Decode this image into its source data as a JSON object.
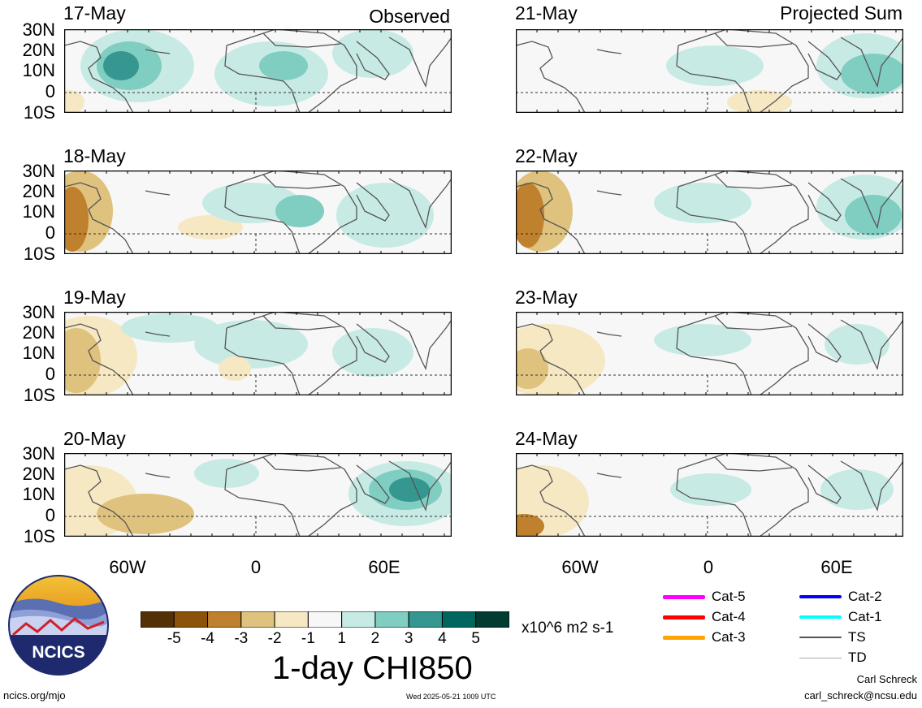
{
  "columns": {
    "left_title": "Observed",
    "right_title": "Projected Sum"
  },
  "observed_dates": [
    "17-May",
    "18-May",
    "19-May",
    "20-May"
  ],
  "projected_dates": [
    "21-May",
    "22-May",
    "23-May",
    "24-May"
  ],
  "lat_labels": [
    "30N",
    "20N",
    "10N",
    "0",
    "10S"
  ],
  "lon_labels": [
    "60W",
    "0",
    "60E"
  ],
  "colorbar": {
    "ticks": [
      "-5",
      "-4",
      "-3",
      "-2",
      "-1",
      "1",
      "2",
      "3",
      "4",
      "5"
    ],
    "colors": [
      "#543005",
      "#8c510a",
      "#bf812d",
      "#dfc27d",
      "#f6e8c3",
      "#f7f7f7",
      "#c7eae5",
      "#80cdc1",
      "#35978f",
      "#01665e",
      "#003c30"
    ],
    "units": "x10^6 m2 s-1",
    "title": "1-day CHI850"
  },
  "storm_legend": [
    {
      "label": "Cat-5",
      "color": "#ff00ff"
    },
    {
      "label": "Cat-4",
      "color": "#ff0000"
    },
    {
      "label": "Cat-3",
      "color": "#ffa500"
    },
    {
      "label": "Cat-2",
      "color": "#0000ff"
    },
    {
      "label": "Cat-1",
      "color": "#00ffff"
    },
    {
      "label": "TS",
      "color": "#555555"
    },
    {
      "label": "TD",
      "color": "#aaaaaa"
    }
  ],
  "logo": {
    "text": "NCICS"
  },
  "footer": {
    "site": "ncics.org/mjo",
    "timestamp": "Wed 2025-05-21 1009 UTC",
    "author": "Carl Schreck",
    "email": "carl_schreck@ncsu.edu"
  }
}
